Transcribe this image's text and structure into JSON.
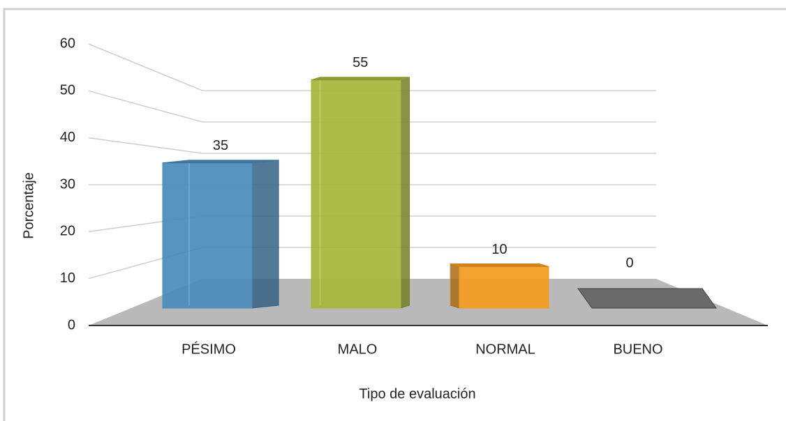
{
  "chart_data": {
    "type": "bar3d",
    "x_label": "Tipo de evaluación",
    "y_label": "Porcentaje",
    "categories": [
      "PÉSIMO",
      "MALO",
      "NORMAL",
      "BUENO"
    ],
    "values": [
      35,
      55,
      10,
      0
    ],
    "colors": [
      "#4a8bbb",
      "#a6b53a",
      "#f39a1e",
      "#6a6a6a"
    ],
    "ylim": [
      0,
      60
    ],
    "yticks": [
      0,
      10,
      20,
      30,
      40,
      50,
      60
    ],
    "grid": true
  }
}
